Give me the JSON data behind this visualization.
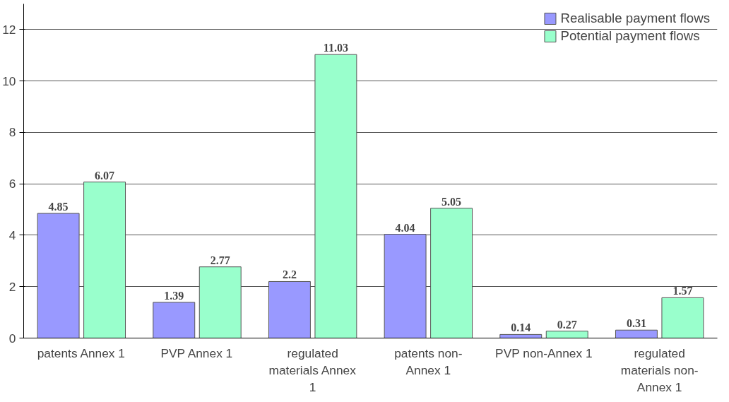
{
  "chart_data": {
    "type": "bar",
    "categories": [
      "patents Annex 1",
      "PVP Annex 1",
      "regulated materials Annex 1",
      "patents non-Annex 1",
      "PVP non-Annex 1",
      "regulated materials non-Annex 1"
    ],
    "series": [
      {
        "name": "Realisable payment flows",
        "color": "#9999ff",
        "values": [
          4.85,
          1.39,
          2.2,
          4.04,
          0.14,
          0.31
        ]
      },
      {
        "name": "Potential payment flows",
        "color": "#99ffcc",
        "values": [
          6.07,
          2.77,
          11.03,
          5.05,
          0.27,
          1.57
        ]
      }
    ],
    "ylim": [
      0,
      13
    ],
    "yticks": [
      0,
      2,
      4,
      6,
      8,
      10,
      12
    ],
    "grid": "y",
    "legend": "top right",
    "data_labels": true
  }
}
